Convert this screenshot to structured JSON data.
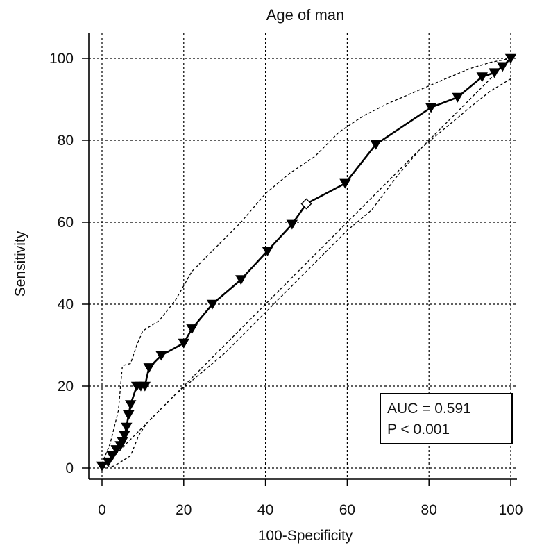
{
  "chart_data": {
    "type": "line",
    "title": "Age of man",
    "xlabel": "100-Specificity",
    "ylabel": "Sensitivity",
    "xlim": [
      0,
      100
    ],
    "ylim": [
      0,
      100
    ],
    "xticks": [
      0,
      20,
      40,
      60,
      80,
      100
    ],
    "yticks": [
      0,
      20,
      40,
      60,
      80,
      100
    ],
    "grid": true,
    "series": [
      {
        "role": "roc-curve",
        "style": "solid",
        "color": "#000000",
        "marker": "triangle-down",
        "points": [
          [
            0,
            0.5
          ],
          [
            1.5,
            1.5
          ],
          [
            2.5,
            3
          ],
          [
            3.5,
            4.5
          ],
          [
            4.5,
            5.5
          ],
          [
            5,
            6.5
          ],
          [
            5.5,
            8
          ],
          [
            6,
            10
          ],
          [
            6.5,
            13
          ],
          [
            7,
            15.5
          ],
          [
            8.5,
            20
          ],
          [
            9.5,
            20
          ],
          [
            10.5,
            20
          ],
          [
            11.5,
            24.5
          ],
          [
            14.5,
            27.5
          ],
          [
            20,
            30.5
          ],
          [
            22,
            34
          ],
          [
            27,
            40
          ],
          [
            34,
            46
          ],
          [
            40.5,
            53
          ],
          [
            46.5,
            59.5
          ],
          [
            50,
            64.5
          ],
          [
            59.5,
            69.5
          ],
          [
            67,
            79
          ],
          [
            80.5,
            88
          ],
          [
            87,
            90.5
          ],
          [
            93,
            95.5
          ],
          [
            96,
            96.5
          ],
          [
            98,
            98
          ],
          [
            100,
            100
          ]
        ],
        "open_points": [
          [
            50,
            64.5
          ]
        ]
      },
      {
        "role": "upper-confidence-bound",
        "style": "dashed",
        "color": "#000000",
        "points": [
          [
            0,
            1
          ],
          [
            2,
            6
          ],
          [
            4,
            14
          ],
          [
            5,
            25
          ],
          [
            7,
            25.5
          ],
          [
            8.5,
            30
          ],
          [
            10,
            33.5
          ],
          [
            14,
            36
          ],
          [
            18,
            41
          ],
          [
            22,
            48
          ],
          [
            28,
            54
          ],
          [
            34,
            60
          ],
          [
            40,
            67
          ],
          [
            46,
            72
          ],
          [
            52,
            76
          ],
          [
            58,
            82
          ],
          [
            64,
            86
          ],
          [
            70,
            89
          ],
          [
            77,
            92
          ],
          [
            84,
            95
          ],
          [
            90,
            97.5
          ],
          [
            95,
            99
          ],
          [
            100,
            100
          ]
        ]
      },
      {
        "role": "lower-confidence-bound",
        "style": "dashed",
        "color": "#000000",
        "points": [
          [
            0,
            0
          ],
          [
            3,
            0.5
          ],
          [
            7,
            3
          ],
          [
            9,
            8
          ],
          [
            11,
            11
          ],
          [
            14,
            14
          ],
          [
            18,
            18
          ],
          [
            24,
            23
          ],
          [
            30,
            28
          ],
          [
            36,
            34
          ],
          [
            42,
            40
          ],
          [
            48,
            46
          ],
          [
            54,
            52
          ],
          [
            60,
            58
          ],
          [
            66,
            63
          ],
          [
            72,
            71
          ],
          [
            78,
            78
          ],
          [
            84,
            83
          ],
          [
            90,
            88
          ],
          [
            95,
            92
          ],
          [
            100,
            95
          ]
        ]
      },
      {
        "role": "reference-diagonal",
        "style": "dashed",
        "color": "#000000",
        "points": [
          [
            0,
            0
          ],
          [
            100,
            100
          ]
        ]
      }
    ],
    "annotation": {
      "lines": [
        "AUC = 0.591",
        "P < 0.001"
      ],
      "placement": "bottom-right"
    }
  }
}
